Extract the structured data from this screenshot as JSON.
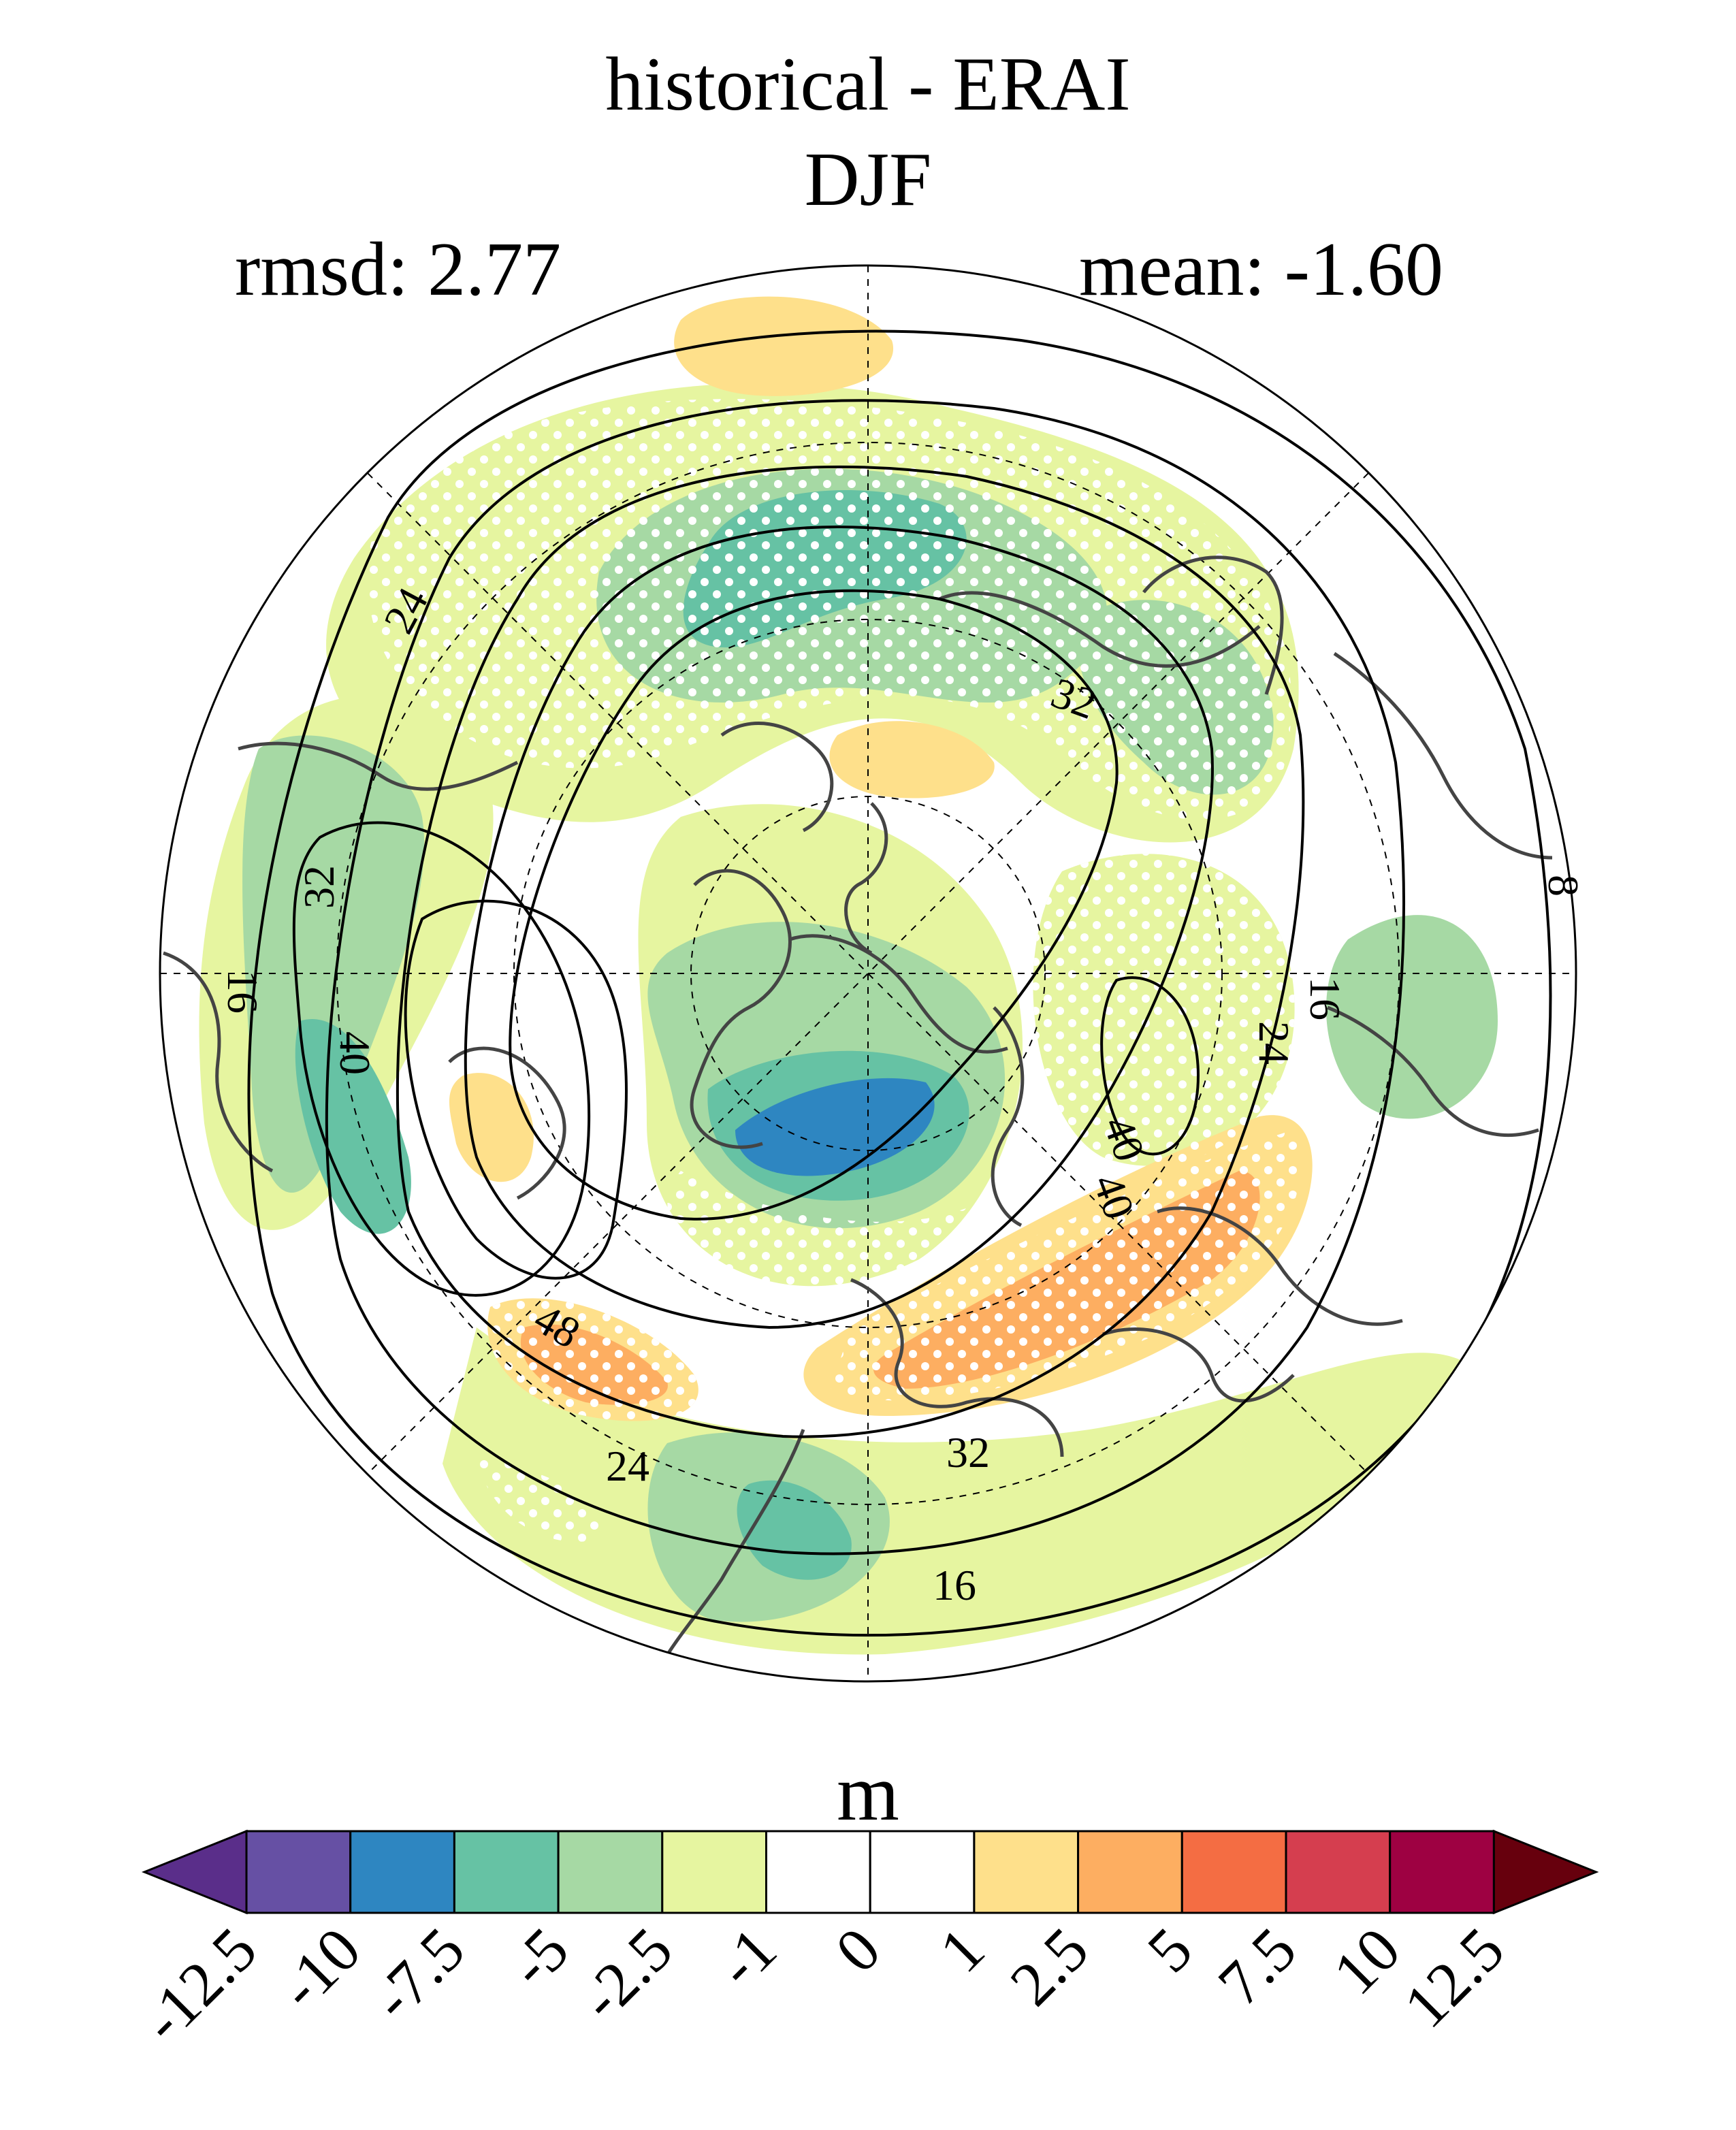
{
  "title": {
    "line1": "historical - ERAI",
    "line2": "DJF"
  },
  "stats": {
    "rmsd": "rmsd: 2.77",
    "mean": "mean: -1.60"
  },
  "units": "m",
  "colorbar": {
    "levels": [
      "-12.5",
      "-10",
      "-7.5",
      "-5",
      "-2.5",
      "-1",
      "0",
      "1",
      "2.5",
      "5",
      "7.5",
      "10",
      "12.5"
    ],
    "colors": [
      "#5a2e8a",
      "#6650a4",
      "#2e86c1",
      "#66c2a4",
      "#a6d9a4",
      "#e6f5a0",
      "#ffffff",
      "#ffffff",
      "#fee08b",
      "#fdae61",
      "#f46d43",
      "#d53e4f",
      "#9e0142",
      "#67000d"
    ]
  },
  "contour_labels": [
    "24",
    "32",
    "32",
    "40",
    "16",
    "40",
    "48",
    "24",
    "32",
    "16",
    "16",
    "24",
    "40",
    "8"
  ],
  "colors": {
    "coast": "#444444",
    "contour": "#000000",
    "stipple": "#ffffff"
  }
}
